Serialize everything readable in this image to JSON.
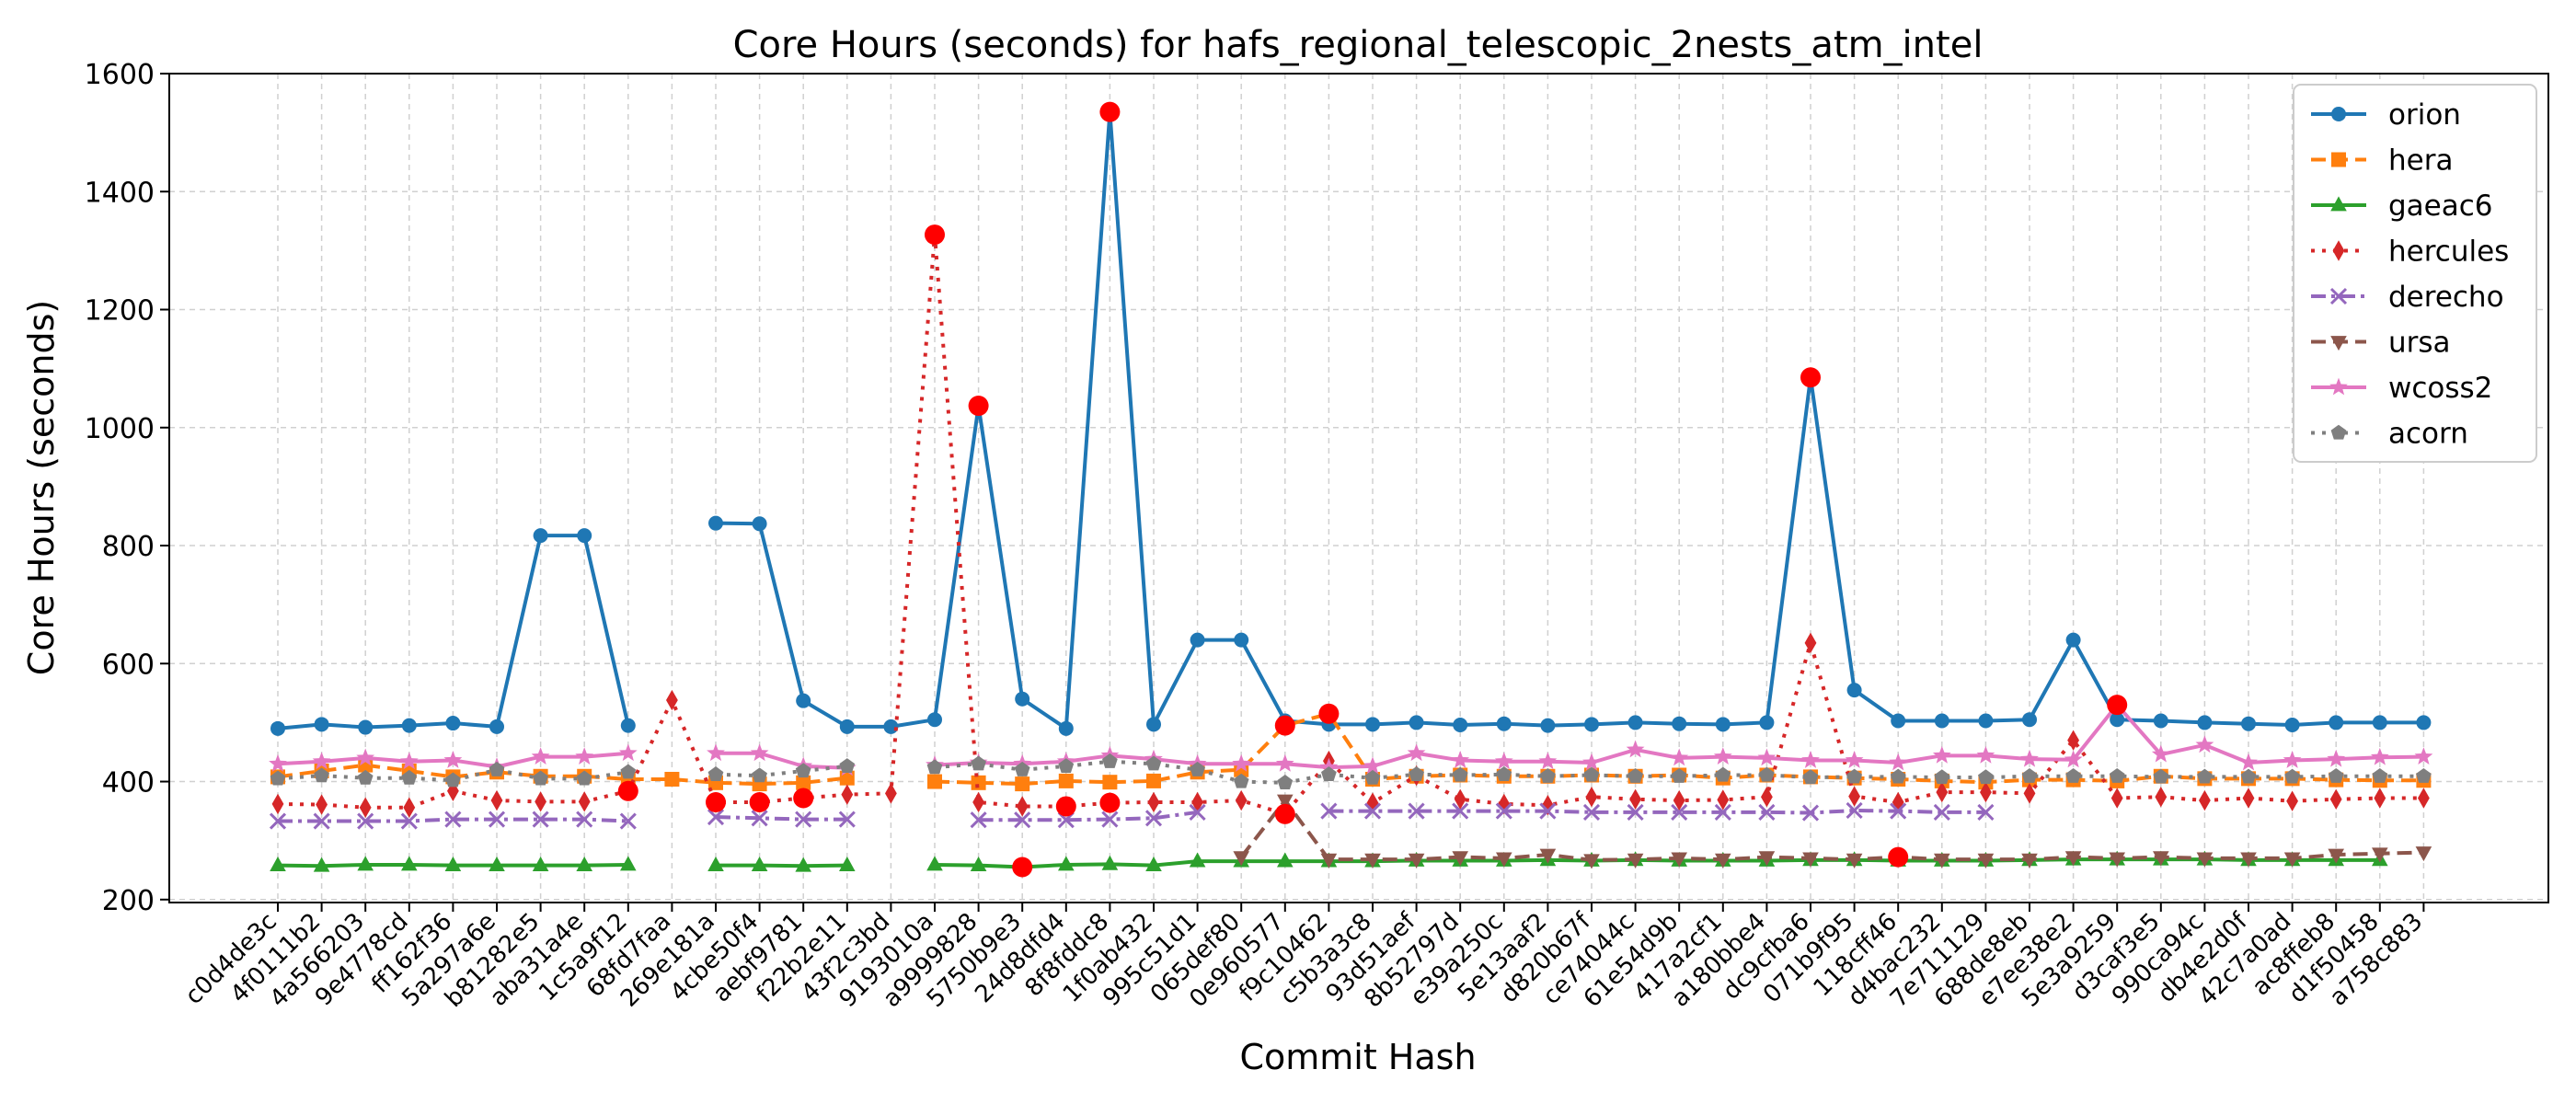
{
  "chart_data": {
    "type": "line",
    "title": "Core Hours (seconds) for hafs_regional_telescopic_2nests_atm_intel",
    "xlabel": "Commit Hash",
    "ylabel": "Core Hours (seconds)",
    "ylim": [
      195,
      1600
    ],
    "yticks": [
      200,
      400,
      600,
      800,
      1000,
      1200,
      1400,
      1600
    ],
    "grid": true,
    "legend_position": "top-right",
    "highlight_color": "#ff0000",
    "categories": [
      "c0d4de3c",
      "4f0111b2",
      "4a566203",
      "9e4778cd",
      "ff162f36",
      "5a297a6e",
      "b81282e5",
      "aba31a4e",
      "1c5a9f12",
      "68fd7faa",
      "269e181a",
      "4cbe50f4",
      "aebf9781",
      "f22b2e11",
      "43f2c3bd",
      "9193010a",
      "a9999828",
      "5750b9e3",
      "24d8dfd4",
      "8f8fddc8",
      "1f0ab432",
      "995c51d1",
      "065def80",
      "0e960577",
      "f9c10462",
      "c5b3a3c8",
      "93d51aef",
      "8b52797d",
      "e39a250c",
      "5e13aaf2",
      "d820b67f",
      "ce74044c",
      "61e54d9b",
      "417a2cf1",
      "a180bbe4",
      "dc9cfba6",
      "071b9f95",
      "118cff46",
      "d4bac232",
      "7e711129",
      "688de8eb",
      "e7ee38e2",
      "5e3a9259",
      "d3caf3e5",
      "990ca94c",
      "db4e2d0f",
      "42c7a0ad",
      "ac8ffeb8",
      "d1f50458",
      "a758c883"
    ],
    "series": [
      {
        "name": "orion",
        "color": "#1f77b4",
        "dash": "solid",
        "marker": "circle",
        "values": [
          490,
          497,
          492,
          495,
          499,
          493,
          817,
          817,
          495,
          null,
          838,
          837,
          537,
          493,
          493,
          505,
          1037,
          540,
          490,
          1535,
          497,
          640,
          640,
          503,
          497,
          497,
          500,
          496,
          498,
          495,
          497,
          500,
          498,
          497,
          500,
          1085,
          555,
          503,
          503,
          503,
          505,
          640,
          505,
          503,
          500,
          498,
          496,
          500,
          500,
          500
        ]
      },
      {
        "name": "hera",
        "color": "#ff7f0e",
        "dash": "dashed",
        "marker": "square",
        "values": [
          408,
          418,
          428,
          418,
          408,
          416,
          409,
          409,
          404,
          404,
          398,
          396,
          398,
          406,
          null,
          400,
          398,
          396,
          401,
          399,
          401,
          416,
          420,
          495,
          515,
          404,
          409,
          411,
          409,
          409,
          411,
          409,
          411,
          406,
          411,
          408,
          406,
          404,
          401,
          399,
          403,
          403,
          401,
          409,
          405,
          405,
          405,
          403,
          402,
          402
        ]
      },
      {
        "name": "gaeac6",
        "color": "#2ca02c",
        "dash": "solid",
        "marker": "triangle",
        "values": [
          258,
          257,
          259,
          259,
          258,
          258,
          258,
          258,
          259,
          null,
          258,
          258,
          257,
          258,
          null,
          259,
          258,
          255,
          259,
          260,
          258,
          265,
          265,
          265,
          265,
          265,
          266,
          266,
          266,
          267,
          266,
          267,
          266,
          266,
          266,
          267,
          267,
          266,
          266,
          266,
          267,
          268,
          268,
          268,
          268,
          267,
          267,
          267,
          267,
          null
        ]
      },
      {
        "name": "hercules",
        "color": "#d62728",
        "dash": "dotted",
        "marker": "diamond",
        "values": [
          362,
          361,
          356,
          356,
          384,
          368,
          366,
          366,
          384,
          538,
          365,
          365,
          372,
          378,
          380,
          1327,
          365,
          358,
          358,
          364,
          365,
          365,
          368,
          345,
          435,
          364,
          410,
          370,
          362,
          360,
          374,
          370,
          368,
          369,
          374,
          635,
          375,
          365,
          382,
          382,
          380,
          470,
          372,
          374,
          368,
          372,
          367,
          370,
          372,
          372
        ]
      },
      {
        "name": "derecho",
        "color": "#9467bd",
        "dash": "dashdot",
        "marker": "x",
        "values": [
          333,
          333,
          333,
          333,
          336,
          336,
          336,
          336,
          333,
          null,
          340,
          338,
          336,
          336,
          null,
          null,
          335,
          335,
          335,
          336,
          338,
          348,
          null,
          null,
          350,
          350,
          350,
          350,
          350,
          350,
          348,
          348,
          348,
          348,
          348,
          347,
          351,
          350,
          348,
          348,
          null,
          null,
          null,
          null,
          null,
          null,
          null,
          null,
          null,
          null
        ]
      },
      {
        "name": "ursa",
        "color": "#8c564b",
        "dash": "dashed",
        "marker": "triangle-down",
        "values": [
          null,
          null,
          null,
          null,
          null,
          null,
          null,
          null,
          null,
          null,
          null,
          null,
          null,
          null,
          null,
          null,
          null,
          null,
          null,
          null,
          null,
          null,
          272,
          368,
          268,
          268,
          268,
          272,
          270,
          276,
          267,
          268,
          270,
          268,
          272,
          270,
          268,
          272,
          268,
          268,
          268,
          272,
          270,
          272,
          270,
          270,
          270,
          276,
          278,
          280
        ]
      },
      {
        "name": "wcoss2",
        "color": "#e377c2",
        "dash": "solid",
        "marker": "star",
        "values": [
          430,
          434,
          440,
          434,
          436,
          425,
          442,
          442,
          448,
          null,
          448,
          448,
          426,
          423,
          null,
          428,
          432,
          430,
          434,
          444,
          438,
          430,
          430,
          430,
          424,
          426,
          448,
          436,
          434,
          434,
          432,
          454,
          440,
          442,
          440,
          436,
          436,
          432,
          444,
          444,
          438,
          437,
          530,
          446,
          462,
          432,
          436,
          438,
          441,
          442
        ]
      },
      {
        "name": "acorn",
        "color": "#7f7f7f",
        "dash": "dotted",
        "marker": "pentagon",
        "values": [
          405,
          410,
          406,
          406,
          402,
          420,
          405,
          405,
          416,
          null,
          412,
          410,
          418,
          426,
          null,
          424,
          430,
          420,
          426,
          434,
          430,
          420,
          400,
          398,
          412,
          406,
          412,
          411,
          412,
          409,
          411,
          409,
          409,
          411,
          411,
          407,
          408,
          408,
          407,
          407,
          409,
          409,
          409,
          408,
          408,
          408,
          408,
          409,
          409,
          409
        ]
      }
    ],
    "highlights": [
      {
        "series": "hercules",
        "index": 8
      },
      {
        "series": "hercules",
        "index": 10
      },
      {
        "series": "hercules",
        "index": 11
      },
      {
        "series": "hercules",
        "index": 12
      },
      {
        "series": "hercules",
        "index": 15
      },
      {
        "series": "orion",
        "index": 16
      },
      {
        "series": "gaeac6",
        "index": 17
      },
      {
        "series": "hercules",
        "index": 18
      },
      {
        "series": "orion",
        "index": 19
      },
      {
        "series": "hercules",
        "index": 19
      },
      {
        "series": "hera",
        "index": 23
      },
      {
        "series": "hercules",
        "index": 23
      },
      {
        "series": "hera",
        "index": 24
      },
      {
        "series": "orion",
        "index": 35
      },
      {
        "series": "ursa",
        "index": 37
      },
      {
        "series": "wcoss2",
        "index": 42
      }
    ]
  }
}
